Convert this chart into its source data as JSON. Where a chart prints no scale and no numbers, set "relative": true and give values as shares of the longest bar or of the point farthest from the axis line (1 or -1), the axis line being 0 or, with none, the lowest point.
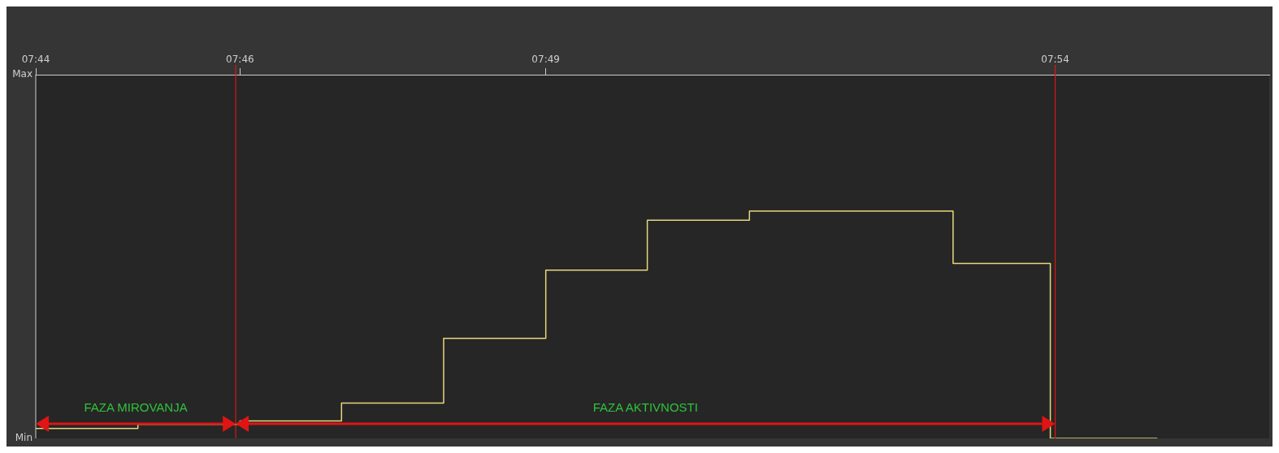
{
  "chart_data": {
    "type": "step",
    "x": [
      7.7333,
      7.75,
      7.7667,
      7.7833,
      7.8,
      7.8167,
      7.8333,
      7.85,
      7.8667,
      7.8833,
      7.8992,
      7.9167
    ],
    "series": [
      {
        "color": "#e8d77c",
        "values": [
          0.044,
          0.062,
          0.077,
          0.155,
          0.44,
          0.74,
          0.96,
          1.0,
          1.0,
          0.77,
          0,
          0
        ]
      }
    ],
    "relative": true,
    "xlim": [
      7.7333,
      7.935
    ],
    "xticks": [
      {
        "value": 7.7333,
        "label": "07:44"
      },
      {
        "value": 7.7667,
        "label": "07:46"
      },
      {
        "value": 7.8167,
        "label": "07:49"
      },
      {
        "value": 7.9,
        "label": "07:54"
      }
    ],
    "legend": false,
    "ref_lines": [
      {
        "axis": "x",
        "value": 7.766,
        "color": "#e01414"
      },
      {
        "axis": "x",
        "value": 7.9,
        "color": "#e01414"
      }
    ],
    "annotations": [
      "Max",
      "Min",
      "FAZA MIROVANJA",
      "FAZA AKTIVNOSTI"
    ]
  }
}
